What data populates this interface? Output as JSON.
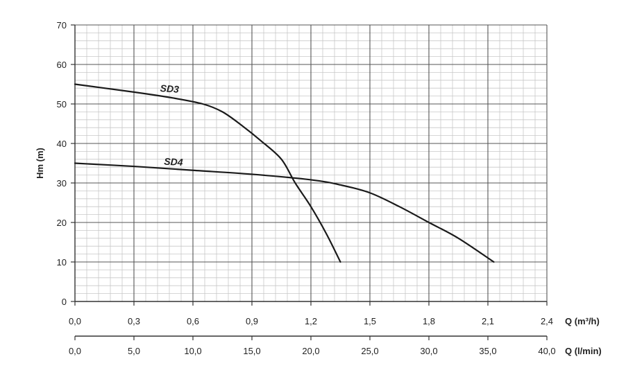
{
  "chart_data": {
    "type": "line",
    "ylabel": "Hm (m)",
    "ylim": [
      0,
      70
    ],
    "yticks": [
      "0",
      "10",
      "20",
      "30",
      "40",
      "50",
      "60",
      "70"
    ],
    "x_axes": [
      {
        "label": "Q (m³/h)",
        "xlim": [
          0,
          2.4
        ],
        "ticks": [
          "0,0",
          "0,3",
          "0,6",
          "0,9",
          "1,2",
          "1,5",
          "1,8",
          "2,1",
          "2,4"
        ]
      },
      {
        "label": "Q (l/min)",
        "xlim": [
          0,
          40
        ],
        "ticks": [
          "0,0",
          "5,0",
          "10,0",
          "15,0",
          "20,0",
          "25,0",
          "30,0",
          "35,0",
          "40,0"
        ]
      }
    ],
    "grid": true,
    "series": [
      {
        "name": "SD3",
        "x_unit": "m³/h",
        "points": [
          [
            0.0,
            55.0
          ],
          [
            0.3,
            53.0
          ],
          [
            0.5,
            51.5
          ],
          [
            0.65,
            50.0
          ],
          [
            0.75,
            48.0
          ],
          [
            0.85,
            44.5
          ],
          [
            0.95,
            40.5
          ],
          [
            1.05,
            36.0
          ],
          [
            1.12,
            30.0
          ],
          [
            1.2,
            24.0
          ],
          [
            1.28,
            17.0
          ],
          [
            1.35,
            10.0
          ]
        ]
      },
      {
        "name": "SD4",
        "x_unit": "m³/h",
        "points": [
          [
            0.0,
            35.0
          ],
          [
            0.3,
            34.2
          ],
          [
            0.6,
            33.2
          ],
          [
            0.9,
            32.2
          ],
          [
            1.2,
            30.8
          ],
          [
            1.35,
            29.5
          ],
          [
            1.5,
            27.5
          ],
          [
            1.65,
            24.0
          ],
          [
            1.8,
            20.0
          ],
          [
            1.95,
            16.0
          ],
          [
            2.13,
            10.0
          ]
        ]
      }
    ]
  }
}
